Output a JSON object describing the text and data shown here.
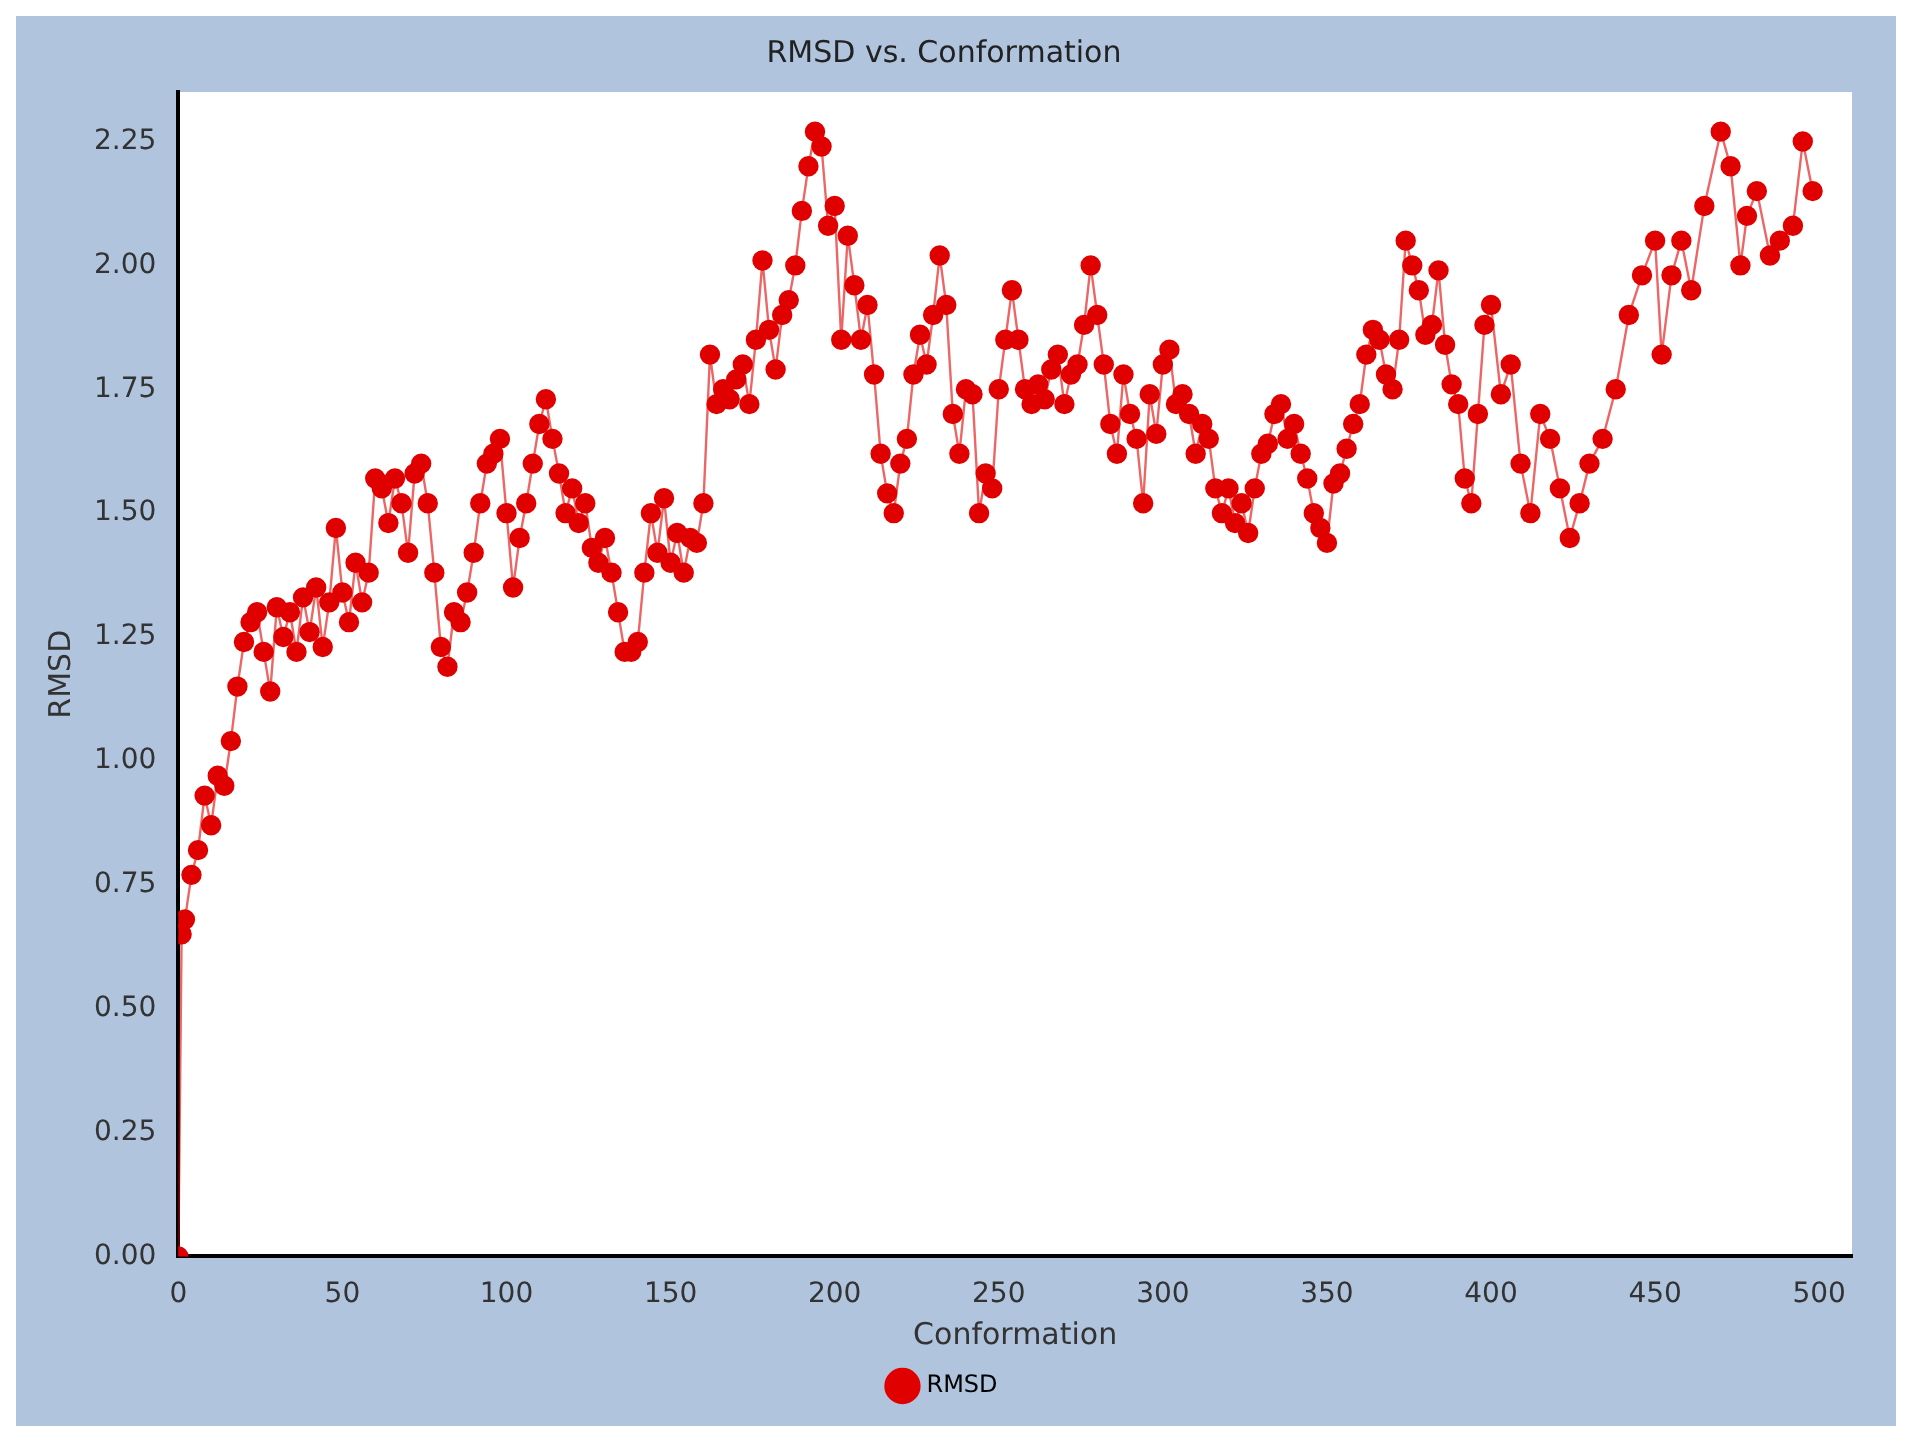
{
  "chart_data": {
    "type": "line",
    "title": "RMSD vs. Conformation",
    "xlabel": "Conformation",
    "ylabel": "RMSD",
    "x": [
      0,
      1,
      2,
      4,
      6,
      8,
      10,
      12,
      14,
      16,
      18,
      20,
      22,
      24,
      26,
      28,
      30,
      32,
      34,
      36,
      38,
      40,
      42,
      44,
      46,
      48,
      50,
      52,
      54,
      56,
      58,
      60,
      62,
      64,
      66,
      68,
      70,
      72,
      74,
      76,
      78,
      80,
      82,
      84,
      86,
      88,
      90,
      92,
      94,
      96,
      98,
      100,
      102,
      104,
      106,
      108,
      110,
      112,
      114,
      116,
      118,
      120,
      122,
      124,
      126,
      128,
      130,
      132,
      134,
      136,
      138,
      140,
      142,
      144,
      146,
      148,
      150,
      152,
      154,
      156,
      158,
      160,
      162,
      164,
      166,
      168,
      170,
      172,
      174,
      176,
      178,
      180,
      182,
      184,
      186,
      188,
      190,
      192,
      194,
      196,
      198,
      200,
      202,
      204,
      206,
      208,
      210,
      212,
      214,
      216,
      218,
      220,
      222,
      224,
      226,
      228,
      230,
      232,
      234,
      236,
      238,
      240,
      242,
      244,
      246,
      248,
      250,
      252,
      254,
      256,
      258,
      260,
      262,
      264,
      266,
      268,
      270,
      272,
      274,
      276,
      278,
      280,
      282,
      284,
      286,
      288,
      290,
      292,
      294,
      296,
      298,
      300,
      302,
      304,
      306,
      308,
      310,
      312,
      314,
      316,
      318,
      320,
      322,
      324,
      326,
      328,
      330,
      332,
      334,
      336,
      338,
      340,
      342,
      344,
      346,
      348,
      350,
      352,
      354,
      356,
      358,
      360,
      362,
      364,
      366,
      368,
      370,
      372,
      374,
      376,
      378,
      380,
      382,
      384,
      386,
      388,
      390,
      392,
      394,
      396,
      398,
      400,
      403,
      406,
      409,
      412,
      415,
      418,
      421,
      424,
      427,
      430,
      434,
      438,
      442,
      446,
      450,
      452,
      455,
      458,
      461,
      465,
      470,
      473,
      476,
      478,
      481,
      485,
      488,
      492,
      495,
      498
    ],
    "series": [
      {
        "name": "RMSD",
        "color": "#e00000",
        "values": [
          0,
          0.65,
          0.68,
          0.77,
          0.82,
          0.93,
          0.87,
          0.97,
          0.95,
          1.04,
          1.15,
          1.24,
          1.28,
          1.3,
          1.22,
          1.14,
          1.31,
          1.25,
          1.3,
          1.22,
          1.33,
          1.26,
          1.35,
          1.23,
          1.32,
          1.47,
          1.34,
          1.28,
          1.4,
          1.32,
          1.38,
          1.57,
          1.55,
          1.48,
          1.57,
          1.52,
          1.42,
          1.58,
          1.6,
          1.52,
          1.38,
          1.23,
          1.19,
          1.3,
          1.28,
          1.34,
          1.42,
          1.52,
          1.6,
          1.62,
          1.65,
          1.5,
          1.35,
          1.45,
          1.52,
          1.6,
          1.68,
          1.73,
          1.65,
          1.58,
          1.5,
          1.55,
          1.48,
          1.52,
          1.43,
          1.4,
          1.45,
          1.38,
          1.3,
          1.22,
          1.22,
          1.24,
          1.38,
          1.5,
          1.42,
          1.53,
          1.4,
          1.46,
          1.38,
          1.45,
          1.44,
          1.52,
          1.82,
          1.72,
          1.75,
          1.73,
          1.77,
          1.8,
          1.72,
          1.85,
          2.01,
          1.87,
          1.79,
          1.9,
          1.93,
          2.0,
          2.11,
          2.2,
          2.27,
          2.24,
          2.08,
          2.12,
          1.85,
          2.06,
          1.96,
          1.85,
          1.92,
          1.78,
          1.62,
          1.54,
          1.5,
          1.6,
          1.65,
          1.78,
          1.86,
          1.8,
          1.9,
          2.02,
          1.92,
          1.7,
          1.62,
          1.75,
          1.74,
          1.5,
          1.58,
          1.55,
          1.75,
          1.85,
          1.95,
          1.85,
          1.75,
          1.72,
          1.76,
          1.73,
          1.79,
          1.82,
          1.72,
          1.78,
          1.8,
          1.88,
          2.0,
          1.9,
          1.8,
          1.68,
          1.62,
          1.78,
          1.7,
          1.65,
          1.52,
          1.74,
          1.66,
          1.8,
          1.83,
          1.72,
          1.74,
          1.7,
          1.62,
          1.68,
          1.65,
          1.55,
          1.5,
          1.55,
          1.48,
          1.52,
          1.46,
          1.55,
          1.62,
          1.64,
          1.7,
          1.72,
          1.65,
          1.68,
          1.62,
          1.57,
          1.5,
          1.47,
          1.44,
          1.56,
          1.58,
          1.63,
          1.68,
          1.72,
          1.82,
          1.87,
          1.85,
          1.78,
          1.75,
          1.85,
          2.05,
          2.0,
          1.95,
          1.86,
          1.88,
          1.99,
          1.84,
          1.76,
          1.72,
          1.57,
          1.52,
          1.7,
          1.88,
          1.92,
          1.74,
          1.8,
          1.6,
          1.5,
          1.7,
          1.65,
          1.55,
          1.45,
          1.52,
          1.6,
          1.65,
          1.75,
          1.9,
          1.98,
          2.05,
          1.82,
          1.98,
          2.05,
          1.95,
          2.12,
          2.27,
          2.2,
          2.0,
          2.1,
          2.15,
          2.02,
          2.05,
          2.08,
          2.25,
          2.15
        ]
      }
    ],
    "xlim": [
      0,
      510
    ],
    "xticks": [
      0,
      50,
      100,
      150,
      200,
      250,
      300,
      350,
      400,
      450,
      500
    ],
    "ylim": [
      0,
      2.35
    ],
    "yticks": [
      {
        "value": 0,
        "label": "0.00"
      },
      0.25,
      {
        "value": 0.5,
        "label": "0.50"
      },
      0.75,
      {
        "value": 1,
        "label": "1.00"
      },
      1.25,
      {
        "value": 1.5,
        "label": "1.50"
      },
      1.75,
      {
        "value": 2,
        "label": "2.00"
      },
      2.25
    ],
    "grid": false,
    "legend": "bottom",
    "marker": "circle",
    "line_style": "solid"
  }
}
